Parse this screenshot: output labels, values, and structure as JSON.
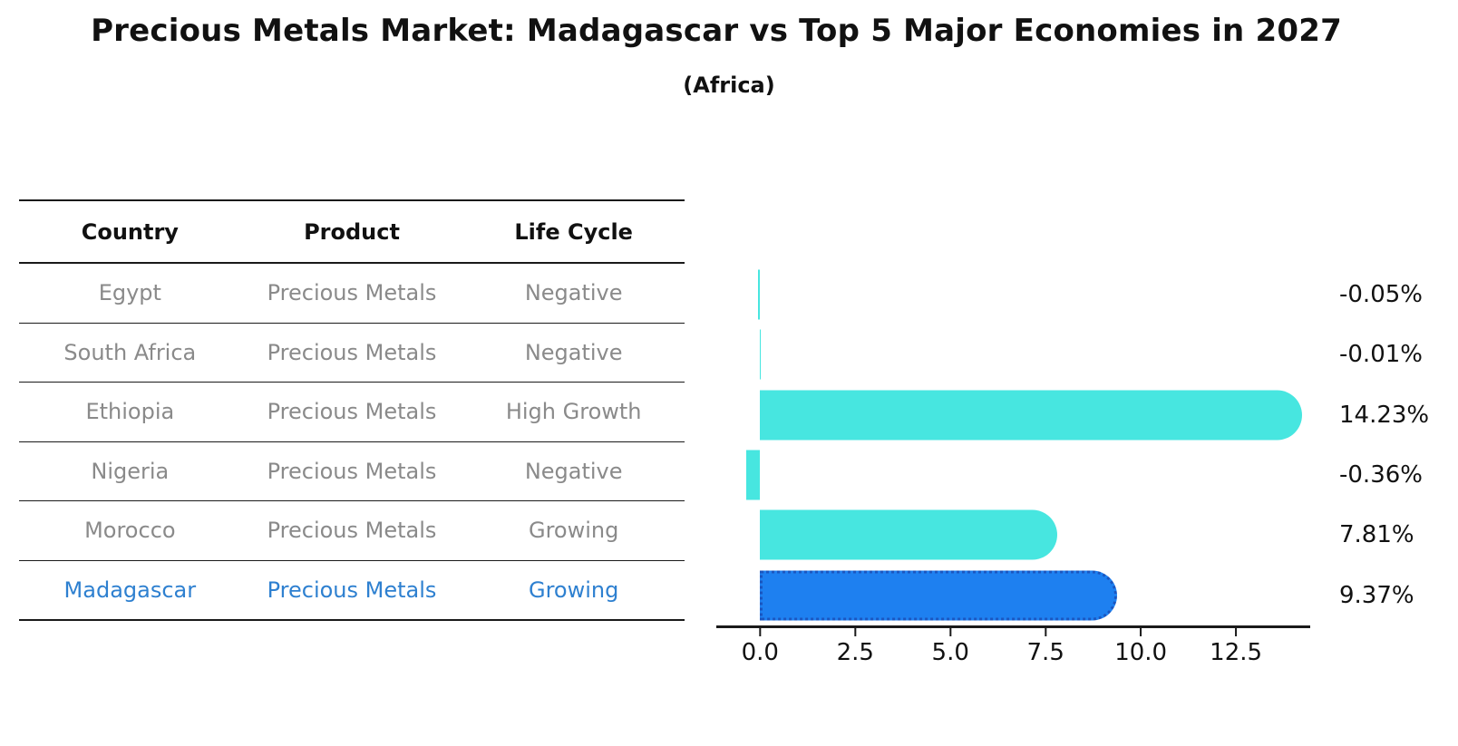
{
  "title": "Precious Metals Market: Madagascar vs Top 5 Major Economies in 2027",
  "subtitle": "(Africa)",
  "table": {
    "headers": [
      "Country",
      "Product",
      "Life Cycle"
    ],
    "rows": [
      {
        "country": "Egypt",
        "product": "Precious Metals",
        "life_cycle": "Negative",
        "highlight": false
      },
      {
        "country": "South Africa",
        "product": "Precious Metals",
        "life_cycle": "Negative",
        "highlight": false
      },
      {
        "country": "Ethiopia",
        "product": "Precious Metals",
        "life_cycle": "High Growth",
        "highlight": false
      },
      {
        "country": "Nigeria",
        "product": "Precious Metals",
        "life_cycle": "Negative",
        "highlight": false
      },
      {
        "country": "Morocco",
        "product": "Precious Metals",
        "life_cycle": "Growing",
        "highlight": false
      },
      {
        "country": "Madagascar",
        "product": "Precious Metals",
        "life_cycle": "Growing",
        "highlight": true
      }
    ]
  },
  "chart_data": {
    "type": "bar",
    "orientation": "horizontal",
    "categories": [
      "Egypt",
      "South Africa",
      "Ethiopia",
      "Nigeria",
      "Morocco",
      "Madagascar"
    ],
    "values": [
      -0.05,
      -0.01,
      14.23,
      -0.36,
      7.81,
      9.37
    ],
    "value_labels": [
      "-0.05%",
      "-0.01%",
      "14.23%",
      "-0.36%",
      "7.81%",
      "9.37%"
    ],
    "highlight_category": "Madagascar",
    "xlim": [
      -1.15,
      14.45
    ],
    "x_ticks": [
      {
        "label": "0.0",
        "value": 0
      },
      {
        "label": "2.5",
        "value": 2.5
      },
      {
        "label": "5.0",
        "value": 5
      },
      {
        "label": "7.5",
        "value": 7.5
      },
      {
        "label": "10.0",
        "value": 10
      },
      {
        "label": "12.5",
        "value": 12.5
      }
    ],
    "grid": false,
    "legend": "none",
    "unit": "percent"
  },
  "colors": {
    "bar_default": "#47e6e0",
    "bar_highlight": "#1e80f0",
    "bar_highlight_border": "#1a56c0",
    "highlight_text": "#2e80d0",
    "table_text": "#8a8a8a",
    "header_text": "#111111",
    "axis_line": "#1a1a1a"
  }
}
